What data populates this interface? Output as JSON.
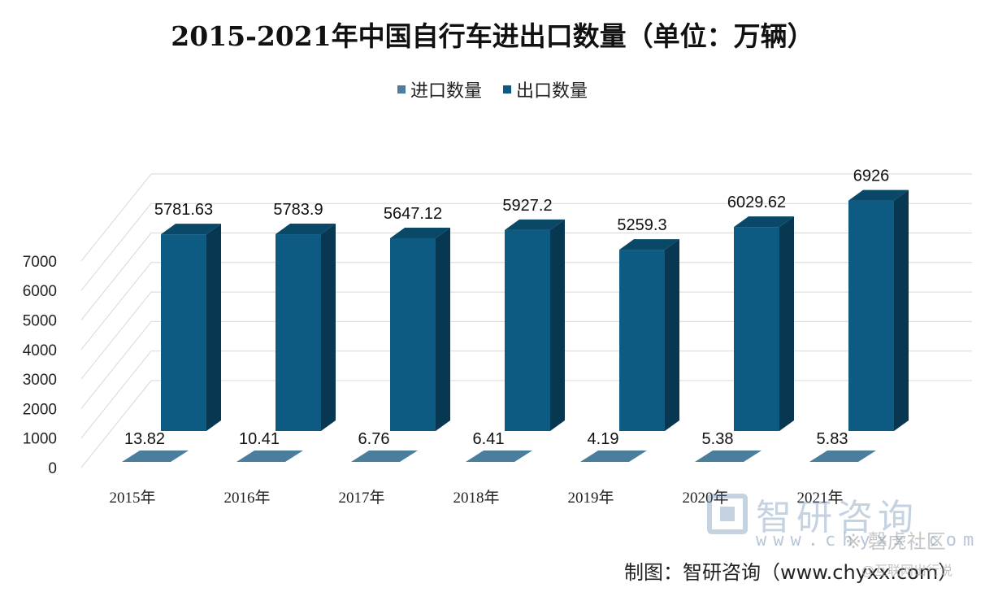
{
  "chart_data": {
    "type": "bar",
    "title": "2015-2021年中国自行车进出口数量（单位：万辆）",
    "categories": [
      "2015年",
      "2016年",
      "2017年",
      "2018年",
      "2019年",
      "2020年",
      "2021年"
    ],
    "series": [
      {
        "name": "进口数量",
        "values": [
          13.82,
          10.41,
          6.76,
          6.41,
          4.19,
          5.38,
          5.83
        ],
        "labels": [
          "13.82",
          "10.41",
          "6.76",
          "6.41",
          "4.19",
          "5.38",
          "5.83"
        ],
        "color": "#4b7d9c"
      },
      {
        "name": "出口数量",
        "values": [
          5781.63,
          5783.9,
          5647.12,
          5927.2,
          5259.3,
          6029.62,
          6926
        ],
        "labels": [
          "5781.63",
          "5783.9",
          "5647.12",
          "5927.2",
          "5259.3",
          "6029.62",
          "6926"
        ],
        "color": "#0d5a82"
      }
    ],
    "yticks": [
      "0",
      "1000",
      "2000",
      "3000",
      "4000",
      "5000",
      "6000",
      "7000"
    ],
    "ylim": [
      0,
      7000
    ],
    "xlabel": "",
    "ylabel": "",
    "legend": "top-center"
  },
  "watermark": {
    "name": "智研咨询",
    "url": "www.chyxx.com",
    "community": "※ 磬虎社区"
  },
  "source": "制图：智研咨询（www.chyxx.com）",
  "source_sub": "@互联网出行说",
  "colors": {
    "import": "#4b7d9c",
    "export": "#0d5a82",
    "grid": "#d8d8d8"
  }
}
